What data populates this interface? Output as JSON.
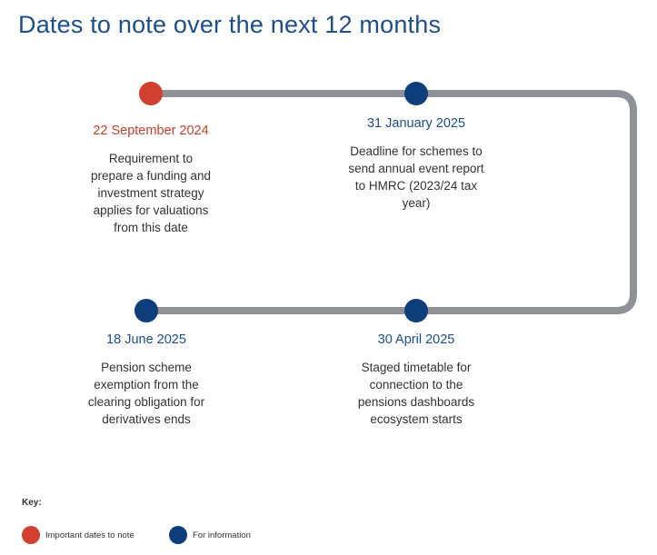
{
  "title": "Dates to note over the next 12 months",
  "colors": {
    "important": "#d2402f",
    "information": "#0d3d7a",
    "track": "#8e9296",
    "heading": "#1d4f8c"
  },
  "events": [
    {
      "date": "22 September 2024",
      "type": "important",
      "description": "Requirement to prepare a funding and investment strategy applies for valuations from this date"
    },
    {
      "date": "31 January 2025",
      "type": "information",
      "description": "Deadline for schemes to send annual event report to HMRC (2023/24 tax year)"
    },
    {
      "date": "30 April 2025",
      "type": "information",
      "description": "Staged timetable for connection to the pensions dashboards ecosystem starts"
    },
    {
      "date": "18 June 2025",
      "type": "information",
      "description": "Pension scheme exemption from the clearing obligation for derivatives ends"
    }
  ],
  "key": {
    "label": "Key:",
    "important": "Important dates to note",
    "information": "For information"
  }
}
